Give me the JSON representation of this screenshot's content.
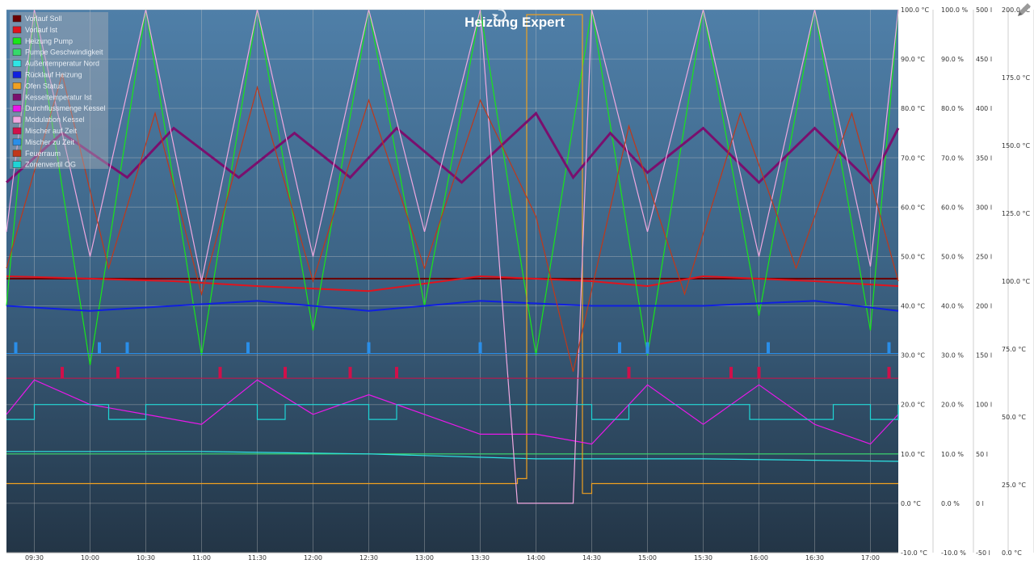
{
  "header": {
    "title": "Heizung Expert",
    "refresh_icon": "refresh-icon",
    "edit_icon": "pencil-icon"
  },
  "chart_data": {
    "type": "line",
    "title": "Heizung Expert",
    "x_ticks": [
      "09:30",
      "10:00",
      "10:30",
      "11:00",
      "11:30",
      "12:00",
      "12:30",
      "13:00",
      "13:30",
      "14:00",
      "14:30",
      "15:00",
      "15:30",
      "16:00",
      "16:30",
      "17:00"
    ],
    "x_range": [
      "09:15",
      "17:15"
    ],
    "grid": true,
    "legend_placement": "top-left",
    "axes": [
      {
        "id": "temp",
        "unit": "°C",
        "range": [
          -10,
          100
        ],
        "ticks": [
          "100.0 °C",
          "90.0 °C",
          "80.0 °C",
          "70.0 °C",
          "60.0 °C",
          "50.0 °C",
          "40.0 °C",
          "30.0 °C",
          "20.0 °C",
          "10.0 °C",
          "0.0 °C",
          "-10.0 °C"
        ]
      },
      {
        "id": "percent",
        "unit": "%",
        "range": [
          -10,
          100
        ],
        "ticks": [
          "100.0 %",
          "90.0 %",
          "80.0 %",
          "70.0 %",
          "60.0 %",
          "50.0 %",
          "40.0 %",
          "30.0 %",
          "20.0 %",
          "10.0 %",
          "0.0 %",
          "-10.0 %"
        ]
      },
      {
        "id": "liters",
        "unit": "l",
        "range": [
          -50,
          500
        ],
        "ticks": [
          "500 l",
          "450 l",
          "400 l",
          "350 l",
          "300 l",
          "250 l",
          "200 l",
          "150 l",
          "100 l",
          "50 l",
          "0 l",
          "-50 l"
        ]
      },
      {
        "id": "temp2",
        "unit": "°C",
        "range": [
          -10,
          200
        ],
        "ticks": [
          "200.0 °C",
          "175.0 °C",
          "150.0 °C",
          "125.0 °C",
          "100.0 °C",
          "75.0 °C",
          "50.0 °C",
          "25.0 °C",
          "0.0 °C"
        ]
      }
    ],
    "series": [
      {
        "name": "Vorlauf Soll",
        "color": "#6b0000",
        "axis": "temp",
        "x": [
          "09:15",
          "17:15"
        ],
        "values": [
          45.5,
          45.5
        ]
      },
      {
        "name": "Vorlauf Ist",
        "color": "#e0141e",
        "axis": "temp",
        "x": [
          "09:15",
          "10:00",
          "10:45",
          "11:30",
          "12:30",
          "13:30",
          "14:30",
          "15:00",
          "15:30",
          "16:30",
          "17:15"
        ],
        "values": [
          46,
          45.5,
          45,
          44,
          43,
          46,
          45,
          44,
          46,
          45,
          44
        ]
      },
      {
        "name": "Heizung Pump",
        "color": "#19e619",
        "axis": "percent",
        "x": [
          "09:15",
          "09:30",
          "10:00",
          "10:30",
          "11:00",
          "11:30",
          "12:00",
          "12:30",
          "13:00",
          "13:30",
          "14:00",
          "14:30",
          "15:00",
          "15:30",
          "16:00",
          "16:30",
          "17:00",
          "17:15"
        ],
        "values": [
          40,
          100,
          28,
          100,
          30,
          100,
          35,
          100,
          40,
          100,
          30,
          100,
          30,
          100,
          38,
          100,
          35,
          100
        ]
      },
      {
        "name": "Pumpe Geschwindigkeit",
        "color": "#36d96b",
        "axis": "percent",
        "x": [
          "09:15",
          "17:15"
        ],
        "values": [
          10,
          10
        ]
      },
      {
        "name": "Außentemperatur Nord",
        "color": "#2ee5e5",
        "axis": "temp",
        "x": [
          "09:15",
          "11:00",
          "12:30",
          "14:00",
          "15:30",
          "17:15"
        ],
        "values": [
          10.5,
          10.5,
          10,
          9,
          9,
          8.5
        ]
      },
      {
        "name": "Rücklauf Heizung",
        "color": "#1020e0",
        "axis": "temp",
        "x": [
          "09:15",
          "10:00",
          "10:45",
          "11:30",
          "12:30",
          "13:30",
          "14:30",
          "15:30",
          "16:30",
          "17:15"
        ],
        "values": [
          40,
          39,
          40,
          41,
          39,
          41,
          40,
          40,
          41,
          39
        ]
      },
      {
        "name": "Ofen Status",
        "color": "#f0a020",
        "axis": "percent",
        "x": [
          "09:15",
          "13:45",
          "13:50",
          "13:55",
          "14:20",
          "14:25",
          "14:30",
          "17:15"
        ],
        "values": [
          4,
          4,
          5,
          99,
          99,
          2,
          4,
          4
        ]
      },
      {
        "name": "Kesseltemperatur Ist",
        "color": "#7a0f6e",
        "axis": "temp",
        "x": [
          "09:15",
          "09:45",
          "10:20",
          "10:45",
          "11:20",
          "11:50",
          "12:20",
          "12:45",
          "13:20",
          "14:00",
          "14:20",
          "14:40",
          "15:00",
          "15:30",
          "16:00",
          "16:30",
          "17:00",
          "17:15"
        ],
        "values": [
          65,
          75,
          66,
          76,
          66,
          75,
          66,
          76,
          65,
          79,
          66,
          75,
          67,
          76,
          65,
          76,
          65,
          76
        ]
      },
      {
        "name": "Durchflussmenge Kessel",
        "color": "#ea18ea",
        "axis": "liters",
        "x": [
          "09:15",
          "09:30",
          "10:00",
          "10:30",
          "11:00",
          "11:30",
          "12:00",
          "12:30",
          "13:00",
          "13:30",
          "14:00",
          "14:30",
          "15:00",
          "15:30",
          "16:00",
          "16:30",
          "17:00",
          "17:15"
        ],
        "values": [
          90,
          125,
          100,
          90,
          80,
          125,
          90,
          110,
          90,
          70,
          70,
          60,
          120,
          80,
          120,
          80,
          60,
          90
        ]
      },
      {
        "name": "Modulation Kessel",
        "color": "#f0a8e0",
        "axis": "percent",
        "x": [
          "09:15",
          "09:30",
          "10:00",
          "10:30",
          "11:00",
          "11:30",
          "12:00",
          "12:30",
          "13:00",
          "13:30",
          "13:50",
          "14:20",
          "14:30",
          "15:00",
          "15:30",
          "16:00",
          "16:30",
          "17:00",
          "17:15"
        ],
        "values": [
          55,
          100,
          50,
          100,
          45,
          100,
          50,
          100,
          55,
          100,
          0,
          0,
          100,
          55,
          100,
          50,
          100,
          48,
          100
        ]
      },
      {
        "name": "Mischer auf Zeit",
        "color": "#d0104a",
        "axis": "percent",
        "x": [
          "09:45",
          "10:15",
          "11:10",
          "11:45",
          "12:20",
          "12:45",
          "14:50",
          "15:45",
          "16:00",
          "17:10"
        ],
        "values": [
          26,
          26,
          26,
          26,
          26,
          26,
          26,
          26,
          26,
          26
        ]
      },
      {
        "name": "Mischer zu Zeit",
        "color": "#2a8ee8",
        "axis": "percent",
        "x": [
          "09:20",
          "10:05",
          "10:20",
          "11:25",
          "12:30",
          "13:30",
          "14:45",
          "15:00",
          "16:05",
          "17:10"
        ],
        "values": [
          31,
          31,
          31,
          31,
          31,
          31,
          31,
          31,
          31,
          31
        ]
      },
      {
        "name": "Feuerraum",
        "color": "#c0381a",
        "axis": "temp2",
        "x": [
          "09:15",
          "09:45",
          "10:10",
          "10:35",
          "11:00",
          "11:30",
          "12:00",
          "12:30",
          "13:00",
          "13:30",
          "14:00",
          "14:20",
          "14:50",
          "15:20",
          "15:50",
          "16:20",
          "16:50",
          "17:15"
        ],
        "values": [
          100,
          175,
          100,
          160,
          90,
          170,
          95,
          165,
          100,
          165,
          120,
          60,
          155,
          90,
          160,
          100,
          160,
          95
        ]
      },
      {
        "name": "Zonenventil OG",
        "color": "#1fd4d4",
        "axis": "percent",
        "x": [
          "09:15",
          "09:30",
          "10:10",
          "10:30",
          "11:30",
          "11:45",
          "12:30",
          "12:45",
          "13:30",
          "14:00",
          "14:30",
          "14:50",
          "15:40",
          "15:55",
          "16:40",
          "17:00",
          "17:15"
        ],
        "values": [
          17,
          20,
          17,
          20,
          17,
          20,
          17,
          20,
          20,
          20,
          17,
          20,
          20,
          17,
          20,
          17,
          20
        ]
      }
    ]
  }
}
